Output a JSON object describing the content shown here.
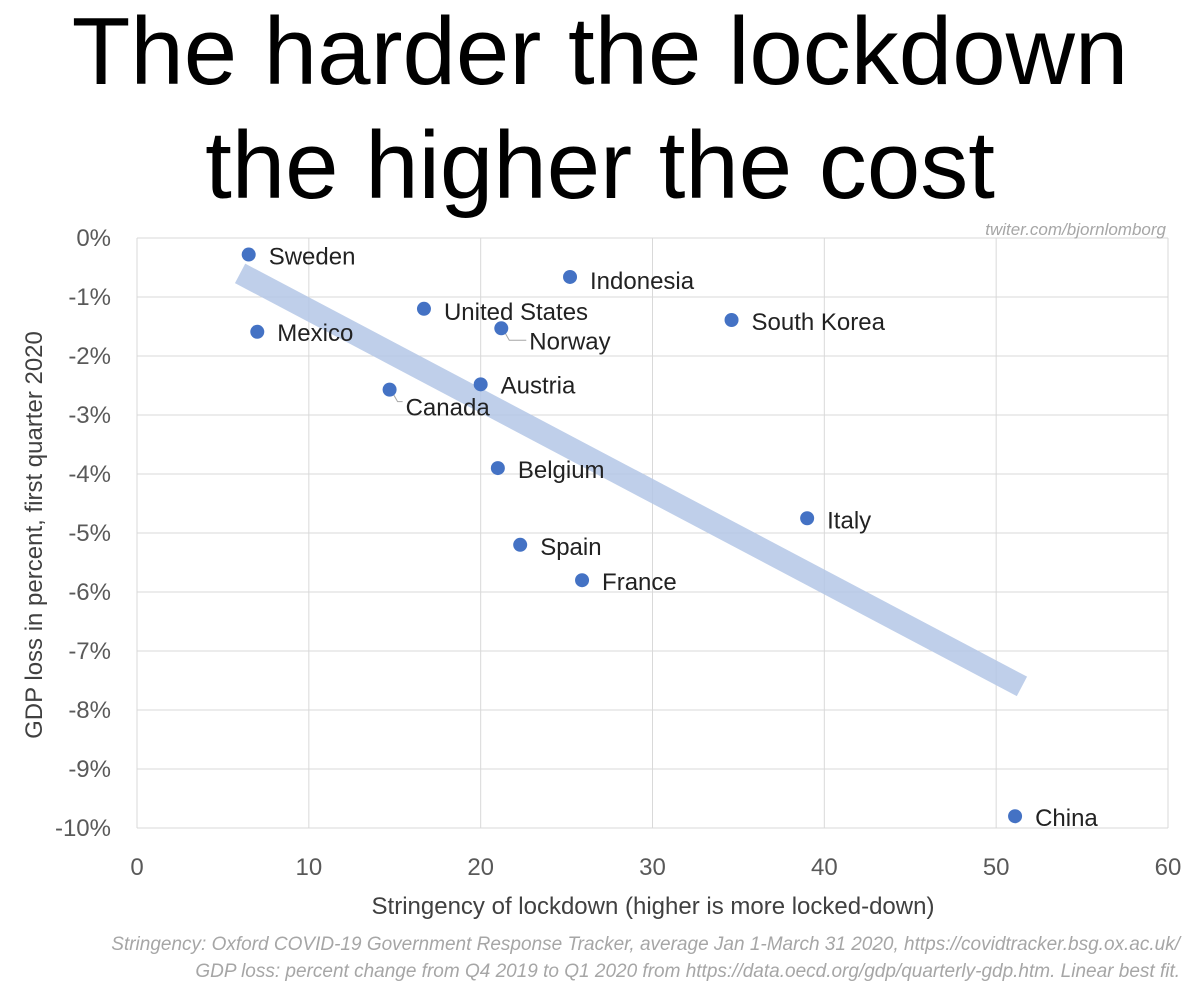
{
  "title_lines": [
    "The harder the lockdown",
    "the higher the cost"
  ],
  "watermark": "twiter.com/bjornlomborg",
  "source_lines": [
    "Stringency: Oxford COVID-19 Government Response Tracker, average Jan 1-March 31 2020, https://covidtracker.bsg.ox.ac.uk/",
    "GDP loss: percent change from Q4 2019 to Q1 2020 from https://data.oecd.org/gdp/quarterly-gdp.htm. Linear best fit."
  ],
  "colors": {
    "point": "#4472c4",
    "trendline": "#b4c7e7",
    "grid": "#d9d9d9",
    "axis_text": "#595959",
    "label_text": "#222222",
    "watermark": "#a6a6a6"
  },
  "chart_data": {
    "type": "scatter",
    "title": "The harder the lockdown the higher the cost",
    "xlabel": "Stringency of lockdown (higher is more locked-down)",
    "ylabel": "GDP loss in percent,  first quarter 2020",
    "xlim": [
      0,
      60
    ],
    "ylim": [
      -10,
      0
    ],
    "x_ticks": [
      0,
      10,
      20,
      30,
      40,
      50,
      60
    ],
    "y_ticks": [
      0,
      -1,
      -2,
      -3,
      -4,
      -5,
      -6,
      -7,
      -8,
      -9,
      -10
    ],
    "y_tick_labels": [
      "0%",
      "-1%",
      "-2%",
      "-3%",
      "-4%",
      "-5%",
      "-6%",
      "-7%",
      "-8%",
      "-9%",
      "-10%"
    ],
    "grid": true,
    "points": [
      {
        "label": "Sweden",
        "x": 6.5,
        "y": -0.28
      },
      {
        "label": "Indonesia",
        "x": 25.2,
        "y": -0.66
      },
      {
        "label": "United States",
        "x": 16.7,
        "y": -1.2
      },
      {
        "label": "Norway",
        "x": 21.2,
        "y": -1.53
      },
      {
        "label": "South Korea",
        "x": 34.6,
        "y": -1.39
      },
      {
        "label": "Mexico",
        "x": 7.0,
        "y": -1.59
      },
      {
        "label": "Canada",
        "x": 14.7,
        "y": -2.57
      },
      {
        "label": "Austria",
        "x": 20.0,
        "y": -2.48
      },
      {
        "label": "Belgium",
        "x": 21.0,
        "y": -3.9
      },
      {
        "label": "Italy",
        "x": 39.0,
        "y": -4.75
      },
      {
        "label": "Spain",
        "x": 22.3,
        "y": -5.2
      },
      {
        "label": "France",
        "x": 25.9,
        "y": -5.8
      },
      {
        "label": "China",
        "x": 51.1,
        "y": -9.8
      }
    ],
    "trendline": {
      "type": "linear",
      "x_start": 6.0,
      "x_end": 51.5,
      "y_start": -0.6,
      "y_end": -7.6
    }
  }
}
